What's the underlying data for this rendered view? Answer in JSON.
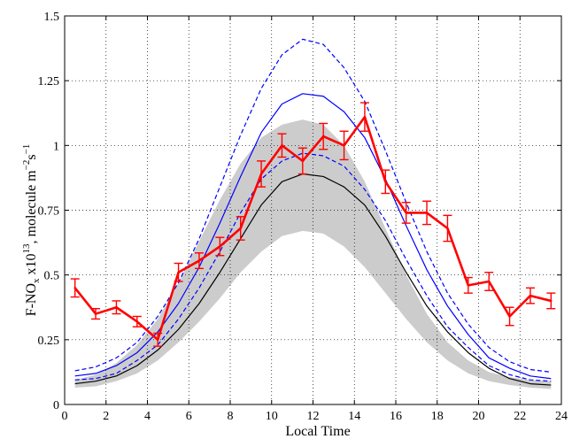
{
  "chart_data": {
    "type": "line",
    "title": "",
    "xlabel": "Local Time",
    "ylabel": {
      "main": "F-NO",
      "sub": "x",
      "mid": " x10",
      "sup1": "13",
      "tail": ", molecule m",
      "sup2": "−2",
      "unit2": "s",
      "sup3": "−1"
    },
    "xlim": [
      0,
      24
    ],
    "ylim": [
      0,
      1.5
    ],
    "xticks": [
      0,
      2,
      4,
      6,
      8,
      10,
      12,
      14,
      16,
      18,
      20,
      22,
      24
    ],
    "xtick_labels": [
      "0",
      "2",
      "4",
      "6",
      "8",
      "10",
      "12",
      "14",
      "16",
      "18",
      "20",
      "22",
      "24"
    ],
    "yticks": [
      0,
      0.25,
      0.5,
      0.75,
      1,
      1.25,
      1.5
    ],
    "ytick_labels": [
      "0",
      "0.25",
      "0.5",
      "0.75",
      "1",
      "1.25",
      "1.5"
    ],
    "grid": "dotted",
    "colors": {
      "observed": "#ff0000",
      "model_blue": "#0000ff",
      "model_black": "#000000",
      "band": "#cccccc"
    },
    "band": {
      "x": [
        0.5,
        1.5,
        2.5,
        3.5,
        4.5,
        5.5,
        6.5,
        7.5,
        8.5,
        9.5,
        10.5,
        11.5,
        12.5,
        13.5,
        14.5,
        15.5,
        16.5,
        17.5,
        18.5,
        19.5,
        20.5,
        21.5,
        22.5,
        23.5
      ],
      "lower": [
        0.065,
        0.07,
        0.09,
        0.12,
        0.17,
        0.24,
        0.32,
        0.41,
        0.51,
        0.59,
        0.65,
        0.67,
        0.66,
        0.61,
        0.53,
        0.43,
        0.33,
        0.24,
        0.17,
        0.12,
        0.09,
        0.075,
        0.065,
        0.06
      ],
      "upper": [
        0.095,
        0.115,
        0.16,
        0.23,
        0.33,
        0.47,
        0.63,
        0.79,
        0.93,
        1.03,
        1.08,
        1.1,
        1.08,
        1.0,
        0.86,
        0.68,
        0.5,
        0.35,
        0.24,
        0.17,
        0.125,
        0.105,
        0.095,
        0.09
      ]
    },
    "series": [
      {
        "style": "solid-black",
        "x": [
          0.5,
          1.5,
          2.5,
          3.5,
          4.5,
          5.5,
          6.5,
          7.5,
          8.5,
          9.5,
          10.5,
          11.5,
          12.5,
          13.5,
          14.5,
          15.5,
          16.5,
          17.5,
          18.5,
          19.5,
          20.5,
          21.5,
          22.5,
          23.5
        ],
        "y": [
          0.08,
          0.09,
          0.11,
          0.15,
          0.21,
          0.29,
          0.39,
          0.51,
          0.64,
          0.77,
          0.86,
          0.89,
          0.88,
          0.84,
          0.77,
          0.65,
          0.51,
          0.38,
          0.28,
          0.2,
          0.14,
          0.1,
          0.08,
          0.075
        ]
      },
      {
        "style": "solid-blue",
        "x": [
          0.5,
          1.5,
          2.5,
          3.5,
          4.5,
          5.5,
          6.5,
          7.5,
          8.5,
          9.5,
          10.5,
          11.5,
          12.5,
          13.5,
          14.5,
          15.5,
          16.5,
          17.5,
          18.5,
          19.5,
          20.5,
          21.5,
          22.5,
          23.5
        ],
        "y": [
          0.11,
          0.12,
          0.15,
          0.2,
          0.28,
          0.39,
          0.53,
          0.7,
          0.88,
          1.05,
          1.16,
          1.2,
          1.19,
          1.13,
          1.03,
          0.87,
          0.69,
          0.52,
          0.38,
          0.27,
          0.18,
          0.14,
          0.11,
          0.1
        ]
      },
      {
        "style": "dashed-blue",
        "x": [
          0.5,
          1.5,
          2.5,
          3.5,
          4.5,
          5.5,
          6.5,
          7.5,
          8.5,
          9.5,
          10.5,
          11.5,
          12.5,
          13.5,
          14.5,
          15.5,
          16.5,
          17.5,
          18.5,
          19.5,
          20.5,
          21.5,
          22.5,
          23.5
        ],
        "y": [
          0.095,
          0.1,
          0.12,
          0.17,
          0.23,
          0.33,
          0.45,
          0.59,
          0.74,
          0.87,
          0.94,
          0.97,
          0.96,
          0.92,
          0.83,
          0.71,
          0.56,
          0.42,
          0.3,
          0.22,
          0.15,
          0.115,
          0.095,
          0.09
        ]
      },
      {
        "style": "dashed-blue",
        "x": [
          0.5,
          1.5,
          2.5,
          3.5,
          4.5,
          5.5,
          6.5,
          7.5,
          8.5,
          9.5,
          10.5,
          11.5,
          12.5,
          13.5,
          14.5,
          15.5,
          16.5,
          17.5,
          18.5,
          19.5,
          20.5,
          21.5,
          22.5,
          23.5
        ],
        "y": [
          0.13,
          0.145,
          0.18,
          0.24,
          0.34,
          0.47,
          0.64,
          0.84,
          1.04,
          1.22,
          1.35,
          1.41,
          1.39,
          1.3,
          1.17,
          0.98,
          0.78,
          0.59,
          0.43,
          0.31,
          0.22,
          0.165,
          0.135,
          0.125
        ]
      },
      {
        "style": "observed-red",
        "x": [
          0.5,
          1.5,
          2.5,
          3.5,
          4.5,
          5.5,
          6.5,
          7.5,
          8.5,
          9.5,
          10.5,
          11.5,
          12.5,
          13.5,
          14.5,
          15.5,
          16.5,
          17.5,
          18.5,
          19.5,
          20.5,
          21.5,
          22.5,
          23.5
        ],
        "y": [
          0.45,
          0.35,
          0.375,
          0.32,
          0.25,
          0.51,
          0.555,
          0.61,
          0.68,
          0.89,
          1.0,
          0.94,
          1.035,
          1.0,
          1.11,
          0.86,
          0.74,
          0.74,
          0.68,
          0.46,
          0.475,
          0.34,
          0.42,
          0.4
        ],
        "err": [
          0.035,
          0.02,
          0.025,
          0.02,
          0.025,
          0.035,
          0.03,
          0.035,
          0.045,
          0.05,
          0.045,
          0.05,
          0.05,
          0.055,
          0.055,
          0.045,
          0.04,
          0.045,
          0.05,
          0.03,
          0.035,
          0.035,
          0.03,
          0.03
        ]
      }
    ]
  }
}
